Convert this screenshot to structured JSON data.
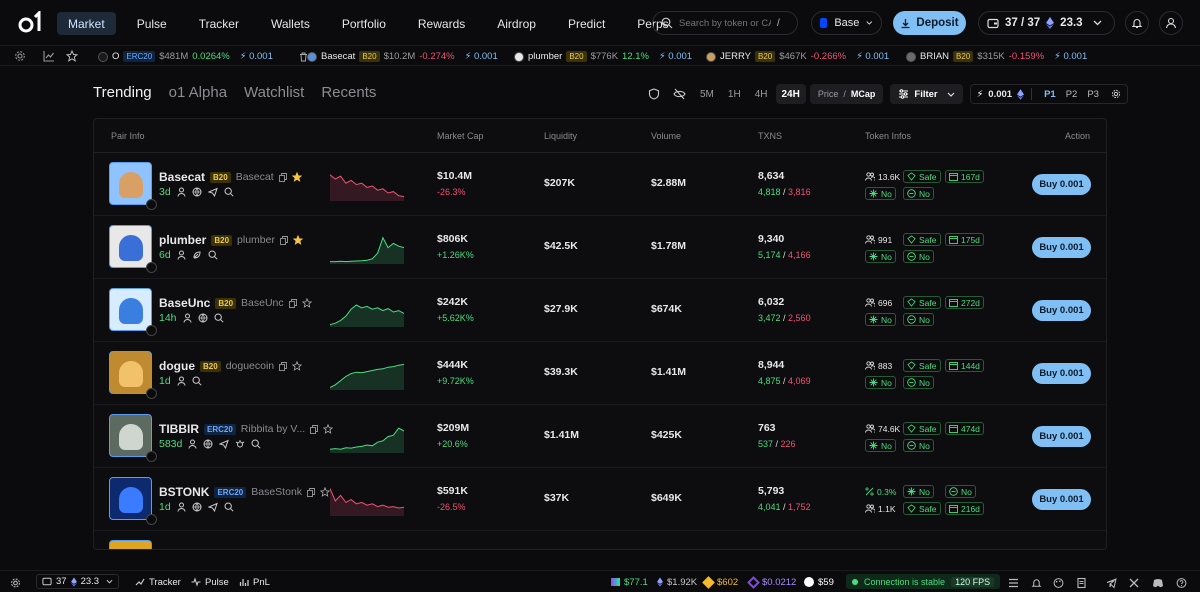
{
  "nav": {
    "logo": "o1",
    "items": [
      {
        "label": "Market",
        "active": true
      },
      {
        "label": "Pulse"
      },
      {
        "label": "Tracker"
      },
      {
        "label": "Wallets"
      },
      {
        "label": "Portfolio"
      },
      {
        "label": "Rewards"
      },
      {
        "label": "Airdrop"
      },
      {
        "label": "Predict"
      },
      {
        "label": "Perps"
      }
    ],
    "search_placeholder": "Search by token or CA...",
    "search_shortcut": "/",
    "chain": "Base",
    "deposit_label": "Deposit",
    "wallet_count": "37 / 37",
    "balance": "23.3"
  },
  "ticker": [
    {
      "name": "O",
      "badge": "ERC20",
      "mcap": "$481M",
      "change": "0.0264%",
      "buy": "0.001",
      "dir": "pos"
    },
    {
      "name": "Basecat",
      "badge": "B20",
      "mcap": "$10.2M",
      "change": "-0.274%",
      "buy": "0.001",
      "dir": "neg"
    },
    {
      "name": "plumber",
      "badge": "B20",
      "mcap": "$776K",
      "change": "12.1%",
      "buy": "0.001",
      "dir": "pos"
    },
    {
      "name": "JERRY",
      "badge": "B20",
      "mcap": "$467K",
      "change": "-0.266%",
      "buy": "0.001",
      "dir": "neg"
    },
    {
      "name": "BRIAN",
      "badge": "B20",
      "mcap": "$315K",
      "change": "-0.159%",
      "buy": "0.001",
      "dir": "neg"
    }
  ],
  "tabs": [
    "Trending",
    "o1 Alpha",
    "Watchlist",
    "Recents"
  ],
  "timeframes": [
    "5M",
    "1H",
    "4H",
    "24H"
  ],
  "active_timeframe": "24H",
  "sort_toggle": {
    "price": "Price",
    "sep": "/",
    "mcap": "MCap"
  },
  "filter_label": "Filter",
  "buy_amount": "0.001",
  "presets": [
    "P1",
    "P2",
    "P3"
  ],
  "active_preset": "P1",
  "columns": [
    "Pair Info",
    "Market Cap",
    "Liquidity",
    "Volume",
    "TXNS",
    "Token Infos",
    "Action"
  ],
  "rows": [
    {
      "ticker": "Basecat",
      "badge": "B20",
      "full": "Basecat",
      "starred": true,
      "age": "3d",
      "mcap": "$10.4M",
      "mchg": "-26.3%",
      "mdir": "neg",
      "liq": "$207K",
      "vol": "$2.88M",
      "txns": "8,634",
      "buys": "4,818",
      "sells": "3,816",
      "info": {
        "holders": "13.6K",
        "safe": "Safe",
        "days": "167d",
        "a": "No",
        "b": "No"
      },
      "buy": "Buy 0.001",
      "spark": [
        0.9,
        0.75,
        0.85,
        0.6,
        0.7,
        0.55,
        0.6,
        0.45,
        0.5,
        0.35,
        0.4,
        0.25,
        0.3,
        0.15,
        0.12
      ],
      "sdir": "neg"
    },
    {
      "ticker": "plumber",
      "badge": "B20",
      "full": "plumber",
      "starred": true,
      "age": "6d",
      "mcap": "$806K",
      "mchg": "+1.26K%",
      "mdir": "pos",
      "liq": "$42.5K",
      "vol": "$1.78M",
      "txns": "9,340",
      "buys": "5,174",
      "sells": "4,166",
      "info": {
        "holders": "991",
        "safe": "Safe",
        "days": "175d",
        "a": "No",
        "b": "No"
      },
      "buy": "Buy 0.001",
      "spark": [
        0.05,
        0.05,
        0.06,
        0.05,
        0.06,
        0.07,
        0.08,
        0.1,
        0.15,
        0.35,
        0.9,
        0.55,
        0.7,
        0.6,
        0.55
      ],
      "sdir": "pos"
    },
    {
      "ticker": "BaseUnc",
      "badge": "B20",
      "full": "BaseUnc",
      "starred": false,
      "age": "14h",
      "mcap": "$242K",
      "mchg": "+5.62K%",
      "mdir": "pos",
      "liq": "$27.9K",
      "vol": "$674K",
      "txns": "6,032",
      "buys": "3,472",
      "sells": "2,560",
      "info": {
        "holders": "696",
        "safe": "Safe",
        "days": "272d",
        "a": "No",
        "b": "No"
      },
      "buy": "Buy 0.001",
      "spark": [
        0.05,
        0.1,
        0.2,
        0.35,
        0.6,
        0.75,
        0.65,
        0.7,
        0.6,
        0.65,
        0.55,
        0.62,
        0.5,
        0.55,
        0.45
      ],
      "sdir": "pos"
    },
    {
      "ticker": "dogue",
      "badge": "B20",
      "full": "doguecoin",
      "starred": false,
      "age": "1d",
      "mcap": "$444K",
      "mchg": "+9.72K%",
      "mdir": "pos",
      "liq": "$39.3K",
      "vol": "$1.41M",
      "txns": "8,944",
      "buys": "4,875",
      "sells": "4,069",
      "info": {
        "holders": "883",
        "safe": "Safe",
        "days": "144d",
        "a": "No",
        "b": "No"
      },
      "buy": "Buy 0.001",
      "spark": [
        0.05,
        0.15,
        0.3,
        0.45,
        0.55,
        0.6,
        0.58,
        0.62,
        0.66,
        0.7,
        0.72,
        0.78,
        0.8,
        0.85,
        0.88
      ],
      "sdir": "pos"
    },
    {
      "ticker": "TIBBIR",
      "badge": "ERC20",
      "full": "Ribbita by V...",
      "starred": false,
      "age": "583d",
      "mcap": "$209M",
      "mchg": "+20.6%",
      "mdir": "pos",
      "liq": "$1.41M",
      "vol": "$425K",
      "txns": "763",
      "buys": "537",
      "sells": "226",
      "info": {
        "holders": "74.6K",
        "safe": "Safe",
        "days": "474d",
        "a": "No",
        "b": "No"
      },
      "buy": "Buy 0.001",
      "spark": [
        0.1,
        0.12,
        0.1,
        0.15,
        0.14,
        0.18,
        0.2,
        0.25,
        0.22,
        0.35,
        0.4,
        0.55,
        0.6,
        0.85,
        0.75
      ],
      "sdir": "pos"
    },
    {
      "ticker": "BSTONK",
      "badge": "ERC20",
      "full": "BaseStonk",
      "starred": false,
      "age": "1d",
      "mcap": "$591K",
      "mchg": "-26.5%",
      "mdir": "neg",
      "liq": "$37K",
      "vol": "$649K",
      "txns": "5,793",
      "buys": "4,041",
      "sells": "1,752",
      "info": {
        "holders": "1.1K",
        "safe": "Safe",
        "days": "216d",
        "a": "No",
        "b": "No",
        "pct": "0.3%"
      },
      "buy": "Buy 0.001",
      "spark": [
        0.95,
        0.5,
        0.7,
        0.45,
        0.55,
        0.4,
        0.45,
        0.35,
        0.4,
        0.3,
        0.35,
        0.28,
        0.3,
        0.25,
        0.28
      ],
      "sdir": "neg"
    }
  ],
  "bottom": {
    "wallets": "37",
    "balance": "23.3",
    "links": [
      "Tracker",
      "Pulse",
      "PnL"
    ],
    "prices": [
      "$77.1",
      "$1.92K",
      "$602",
      "$0.0212",
      "$59"
    ],
    "connection": "Connection is stable",
    "fps": "120 FPS"
  },
  "colors": {
    "accent": "#7fbff4",
    "positive": "#4ade80",
    "negative": "#f05272",
    "bg": "#0b0b0d"
  }
}
